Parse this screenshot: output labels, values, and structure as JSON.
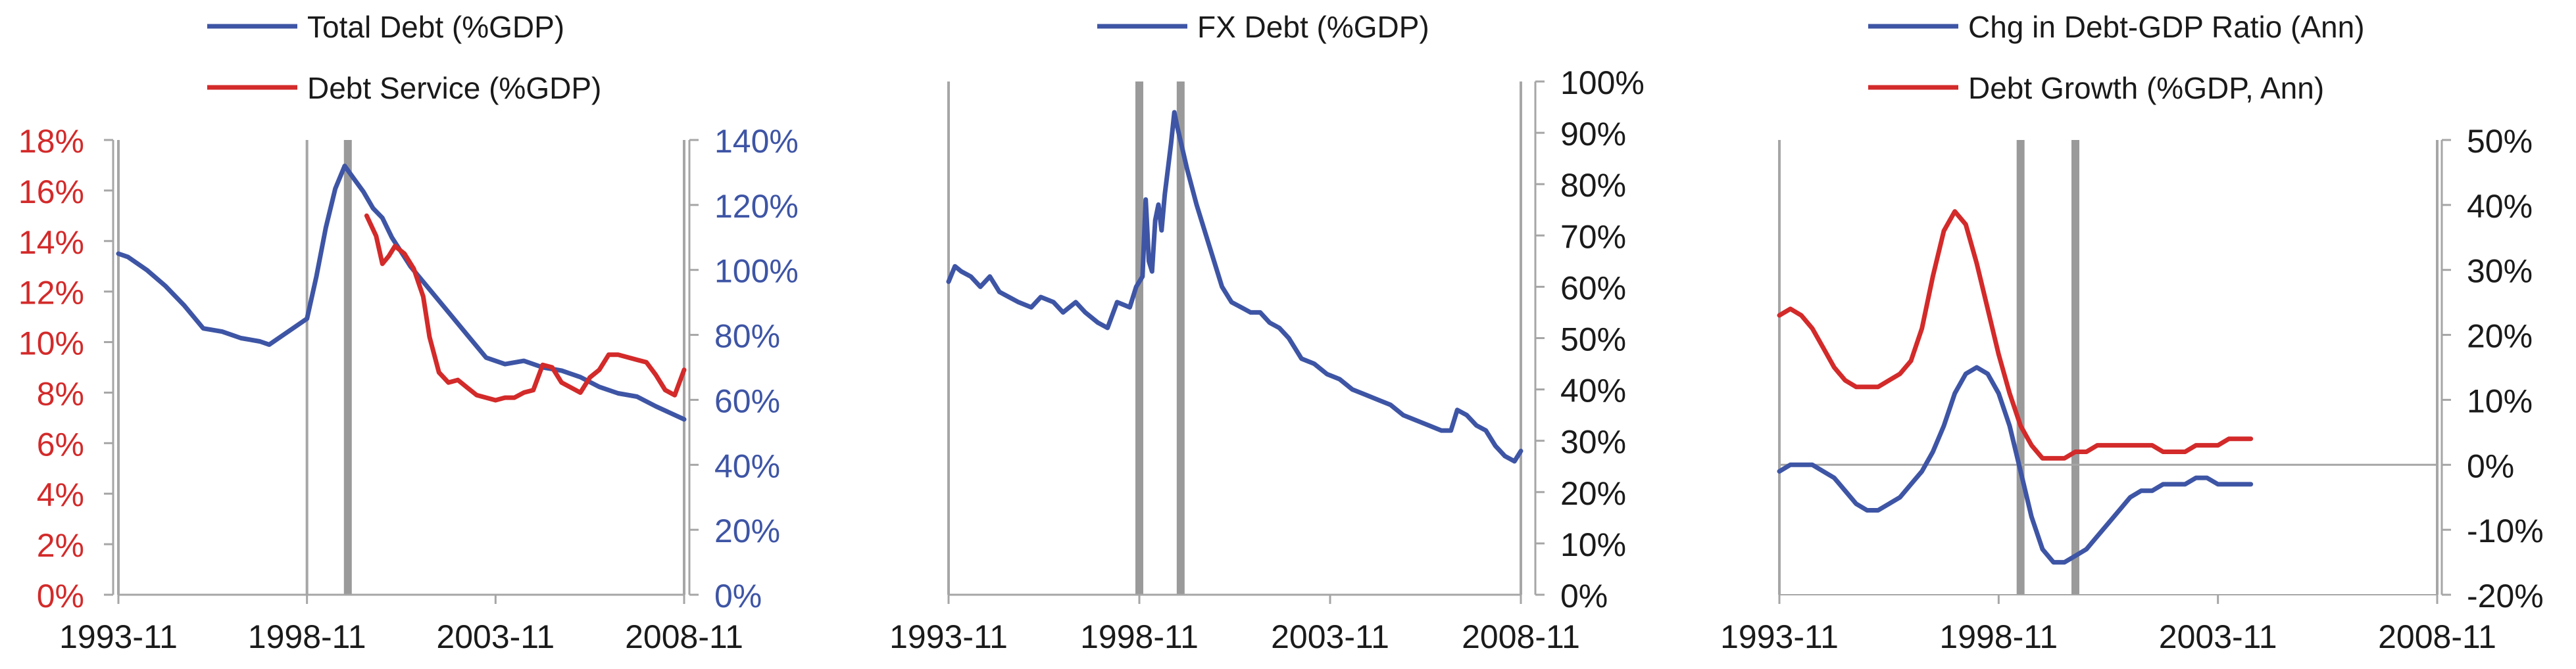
{
  "colors": {
    "blue": "#3E55A5",
    "red": "#D32A2A",
    "axis": "#a6a6a6",
    "marker": "#9a9a9a",
    "text": "#1a1a1a"
  },
  "chart_data": [
    {
      "type": "line",
      "x_ticks": [
        "1993-11",
        "1998-11",
        "2003-11",
        "2008-11"
      ],
      "xlim": [
        "1993-11",
        "2008-11"
      ],
      "vertical_markers": [
        {
          "x": "1993-11",
          "style": "thin"
        },
        {
          "x": "1998-11",
          "style": "thin"
        },
        {
          "x": "1999-12",
          "style": "thick"
        },
        {
          "x": "2008-11",
          "style": "thin"
        }
      ],
      "grid": false,
      "legend_position": "top-left",
      "left_axis": {
        "ylim": [
          0,
          18
        ],
        "ticks": [
          "0%",
          "2%",
          "4%",
          "6%",
          "8%",
          "10%",
          "12%",
          "14%",
          "16%",
          "18%"
        ]
      },
      "right_axis": {
        "ylim": [
          0,
          140
        ],
        "ticks": [
          "0%",
          "20%",
          "40%",
          "60%",
          "80%",
          "100%",
          "120%",
          "140%"
        ]
      },
      "series": [
        {
          "name": "Total Debt (%GDP)",
          "axis": "right",
          "points": [
            [
              "1993-11",
              105
            ],
            [
              "1994-02",
              104
            ],
            [
              "1994-08",
              100
            ],
            [
              "1995-02",
              95
            ],
            [
              "1995-08",
              89
            ],
            [
              "1996-02",
              82
            ],
            [
              "1996-08",
              81
            ],
            [
              "1997-02",
              79
            ],
            [
              "1997-08",
              78
            ],
            [
              "1997-11",
              77
            ],
            [
              "1998-05",
              81
            ],
            [
              "1998-11",
              85
            ],
            [
              "1999-02",
              98
            ],
            [
              "1999-05",
              113
            ],
            [
              "1999-08",
              125
            ],
            [
              "1999-11",
              132
            ],
            [
              "2000-02",
              128
            ],
            [
              "2000-05",
              124
            ],
            [
              "2000-08",
              119
            ],
            [
              "2000-11",
              116
            ],
            [
              "2001-02",
              110
            ],
            [
              "2001-08",
              101
            ],
            [
              "2002-02",
              94
            ],
            [
              "2002-08",
              87
            ],
            [
              "2003-02",
              80
            ],
            [
              "2003-08",
              73
            ],
            [
              "2004-02",
              71
            ],
            [
              "2004-08",
              72
            ],
            [
              "2005-02",
              70
            ],
            [
              "2005-08",
              69
            ],
            [
              "2006-02",
              67
            ],
            [
              "2006-08",
              64
            ],
            [
              "2007-02",
              62
            ],
            [
              "2007-08",
              61
            ],
            [
              "2008-02",
              58
            ],
            [
              "2008-11",
              54
            ]
          ]
        },
        {
          "name": "Debt Service (%GDP)",
          "axis": "left",
          "points": [
            [
              "2000-06",
              15.0
            ],
            [
              "2000-09",
              14.2
            ],
            [
              "2000-11",
              13.1
            ],
            [
              "2001-01",
              13.4
            ],
            [
              "2001-03",
              13.8
            ],
            [
              "2001-06",
              13.5
            ],
            [
              "2001-09",
              12.9
            ],
            [
              "2001-12",
              11.8
            ],
            [
              "2002-02",
              10.2
            ],
            [
              "2002-05",
              8.8
            ],
            [
              "2002-08",
              8.4
            ],
            [
              "2002-11",
              8.5
            ],
            [
              "2003-02",
              8.2
            ],
            [
              "2003-05",
              7.9
            ],
            [
              "2003-08",
              7.8
            ],
            [
              "2003-11",
              7.7
            ],
            [
              "2004-02",
              7.8
            ],
            [
              "2004-05",
              7.8
            ],
            [
              "2004-08",
              8.0
            ],
            [
              "2004-11",
              8.1
            ],
            [
              "2005-02",
              9.1
            ],
            [
              "2005-05",
              9.0
            ],
            [
              "2005-08",
              8.4
            ],
            [
              "2006-02",
              8.0
            ],
            [
              "2006-05",
              8.6
            ],
            [
              "2006-08",
              8.9
            ],
            [
              "2006-11",
              9.5
            ],
            [
              "2007-02",
              9.5
            ],
            [
              "2007-05",
              9.4
            ],
            [
              "2007-08",
              9.3
            ],
            [
              "2007-11",
              9.2
            ],
            [
              "2008-02",
              8.7
            ],
            [
              "2008-05",
              8.1
            ],
            [
              "2008-08",
              7.9
            ],
            [
              "2008-11",
              8.9
            ]
          ]
        }
      ]
    },
    {
      "type": "line",
      "x_ticks": [
        "1993-11",
        "1998-11",
        "2003-11",
        "2008-11"
      ],
      "xlim": [
        "1993-11",
        "2008-11"
      ],
      "vertical_markers": [
        {
          "x": "1993-11",
          "style": "thin"
        },
        {
          "x": "1998-11",
          "style": "thick"
        },
        {
          "x": "1999-12",
          "style": "thick"
        },
        {
          "x": "2008-11",
          "style": "thin"
        }
      ],
      "grid": false,
      "legend_position": "top-center",
      "right_axis": {
        "ylim": [
          0,
          100
        ],
        "ticks": [
          "0%",
          "10%",
          "20%",
          "30%",
          "40%",
          "50%",
          "60%",
          "70%",
          "80%",
          "90%",
          "100%"
        ]
      },
      "series": [
        {
          "name": "FX Debt (%GDP)",
          "axis": "right",
          "points": [
            [
              "1993-11",
              61
            ],
            [
              "1994-01",
              64
            ],
            [
              "1994-03",
              63
            ],
            [
              "1994-06",
              62
            ],
            [
              "1994-09",
              60
            ],
            [
              "1994-12",
              62
            ],
            [
              "1995-03",
              59
            ],
            [
              "1995-06",
              58
            ],
            [
              "1995-09",
              57
            ],
            [
              "1996-01",
              56
            ],
            [
              "1996-04",
              58
            ],
            [
              "1996-08",
              57
            ],
            [
              "1996-11",
              55
            ],
            [
              "1997-03",
              57
            ],
            [
              "1997-06",
              55
            ],
            [
              "1997-10",
              53
            ],
            [
              "1998-01",
              52
            ],
            [
              "1998-04",
              57
            ],
            [
              "1998-08",
              56
            ],
            [
              "1998-10",
              60
            ],
            [
              "1998-12",
              62
            ],
            [
              "1999-01",
              77
            ],
            [
              "1999-02",
              65
            ],
            [
              "1999-03",
              63
            ],
            [
              "1999-04",
              73
            ],
            [
              "1999-05",
              76
            ],
            [
              "1999-06",
              71
            ],
            [
              "1999-07",
              78
            ],
            [
              "1999-08",
              83
            ],
            [
              "1999-09",
              88
            ],
            [
              "1999-10",
              94
            ],
            [
              "1999-11",
              91
            ],
            [
              "2000-02",
              83
            ],
            [
              "2000-05",
              76
            ],
            [
              "2000-08",
              70
            ],
            [
              "2000-11",
              64
            ],
            [
              "2001-01",
              60
            ],
            [
              "2001-04",
              57
            ],
            [
              "2001-07",
              56
            ],
            [
              "2001-10",
              55
            ],
            [
              "2002-01",
              55
            ],
            [
              "2002-04",
              53
            ],
            [
              "2002-07",
              52
            ],
            [
              "2002-10",
              50
            ],
            [
              "2003-02",
              46
            ],
            [
              "2003-06",
              45
            ],
            [
              "2003-10",
              43
            ],
            [
              "2004-02",
              42
            ],
            [
              "2004-06",
              40
            ],
            [
              "2004-10",
              39
            ],
            [
              "2005-02",
              38
            ],
            [
              "2005-06",
              37
            ],
            [
              "2005-10",
              35
            ],
            [
              "2006-02",
              34
            ],
            [
              "2006-06",
              33
            ],
            [
              "2006-10",
              32
            ],
            [
              "2007-01",
              32
            ],
            [
              "2007-03",
              36
            ],
            [
              "2007-06",
              35
            ],
            [
              "2007-09",
              33
            ],
            [
              "2007-12",
              32
            ],
            [
              "2008-03",
              29
            ],
            [
              "2008-06",
              27
            ],
            [
              "2008-09",
              26
            ],
            [
              "2008-11",
              28
            ]
          ]
        }
      ]
    },
    {
      "type": "line",
      "x_ticks": [
        "1993-11",
        "1998-11",
        "2003-11",
        "2008-11"
      ],
      "xlim": [
        "1993-11",
        "2008-11"
      ],
      "vertical_markers": [
        {
          "x": "1993-11",
          "style": "thin"
        },
        {
          "x": "1999-05",
          "style": "thick"
        },
        {
          "x": "2000-08",
          "style": "thick"
        },
        {
          "x": "2008-11",
          "style": "thin"
        }
      ],
      "grid": false,
      "legend_position": "top-left",
      "right_axis": {
        "ylim": [
          -20,
          50
        ],
        "ticks": [
          "-20%",
          "-10%",
          "0%",
          "10%",
          "20%",
          "30%",
          "40%",
          "50%"
        ]
      },
      "series": [
        {
          "name": "Chg in Debt-GDP Ratio (Ann)",
          "axis": "right",
          "points": [
            [
              "1993-11",
              -1
            ],
            [
              "1994-02",
              0
            ],
            [
              "1994-05",
              0
            ],
            [
              "1994-08",
              0
            ],
            [
              "1994-11",
              -1
            ],
            [
              "1995-02",
              -2
            ],
            [
              "1995-05",
              -4
            ],
            [
              "1995-08",
              -6
            ],
            [
              "1995-11",
              -7
            ],
            [
              "1996-02",
              -7
            ],
            [
              "1996-05",
              -6
            ],
            [
              "1996-08",
              -5
            ],
            [
              "1996-11",
              -3
            ],
            [
              "1997-02",
              -1
            ],
            [
              "1997-05",
              2
            ],
            [
              "1997-08",
              6
            ],
            [
              "1997-11",
              11
            ],
            [
              "1998-02",
              14
            ],
            [
              "1998-05",
              15
            ],
            [
              "1998-08",
              14
            ],
            [
              "1998-11",
              11
            ],
            [
              "1999-02",
              6
            ],
            [
              "1999-05",
              -1
            ],
            [
              "1999-08",
              -8
            ],
            [
              "1999-11",
              -13
            ],
            [
              "2000-02",
              -15
            ],
            [
              "2000-05",
              -15
            ],
            [
              "2000-08",
              -14
            ],
            [
              "2000-11",
              -13
            ],
            [
              "2001-02",
              -11
            ],
            [
              "2001-05",
              -9
            ],
            [
              "2001-08",
              -7
            ],
            [
              "2001-11",
              -5
            ],
            [
              "2002-02",
              -4
            ],
            [
              "2002-05",
              -4
            ],
            [
              "2002-08",
              -3
            ],
            [
              "2002-11",
              -3
            ],
            [
              "2003-02",
              -3
            ],
            [
              "2003-05",
              -2
            ],
            [
              "2003-08",
              -2
            ],
            [
              "2003-11",
              -3
            ],
            [
              "2004-02",
              -3
            ],
            [
              "2004-05",
              -3
            ],
            [
              "2004-08",
              -3
            ]
          ]
        },
        {
          "name": "Debt Growth (%GDP, Ann)",
          "axis": "right",
          "points": [
            [
              "1993-11",
              23
            ],
            [
              "1994-02",
              24
            ],
            [
              "1994-05",
              23
            ],
            [
              "1994-08",
              21
            ],
            [
              "1994-11",
              18
            ],
            [
              "1995-02",
              15
            ],
            [
              "1995-05",
              13
            ],
            [
              "1995-08",
              12
            ],
            [
              "1995-11",
              12
            ],
            [
              "1996-02",
              12
            ],
            [
              "1996-05",
              13
            ],
            [
              "1996-08",
              14
            ],
            [
              "1996-11",
              16
            ],
            [
              "1997-02",
              21
            ],
            [
              "1997-05",
              29
            ],
            [
              "1997-08",
              36
            ],
            [
              "1997-11",
              39
            ],
            [
              "1998-02",
              37
            ],
            [
              "1998-05",
              31
            ],
            [
              "1998-08",
              24
            ],
            [
              "1998-11",
              17
            ],
            [
              "1999-02",
              11
            ],
            [
              "1999-05",
              6
            ],
            [
              "1999-08",
              3
            ],
            [
              "1999-11",
              1
            ],
            [
              "2000-02",
              1
            ],
            [
              "2000-05",
              1
            ],
            [
              "2000-08",
              2
            ],
            [
              "2000-11",
              2
            ],
            [
              "2001-02",
              3
            ],
            [
              "2001-05",
              3
            ],
            [
              "2001-08",
              3
            ],
            [
              "2001-11",
              3
            ],
            [
              "2002-02",
              3
            ],
            [
              "2002-05",
              3
            ],
            [
              "2002-08",
              2
            ],
            [
              "2002-11",
              2
            ],
            [
              "2003-02",
              2
            ],
            [
              "2003-05",
              3
            ],
            [
              "2003-08",
              3
            ],
            [
              "2003-11",
              3
            ],
            [
              "2004-02",
              4
            ],
            [
              "2004-05",
              4
            ],
            [
              "2004-08",
              4
            ]
          ]
        }
      ]
    }
  ]
}
